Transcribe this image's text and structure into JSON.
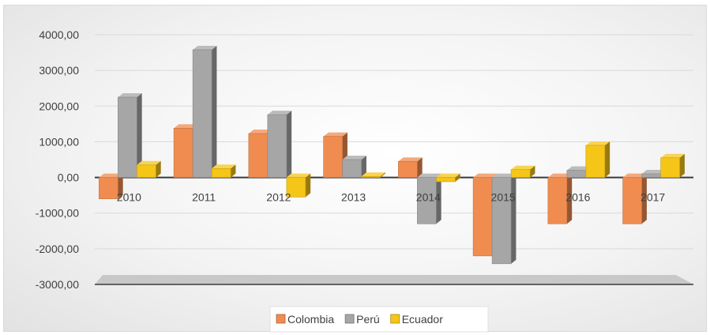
{
  "chart_data": {
    "type": "bar",
    "style": "3d-clustered-column",
    "title": "",
    "xlabel": "",
    "ylabel": "",
    "categories": [
      "2010",
      "2011",
      "2012",
      "2013",
      "2014",
      "2015",
      "2016",
      "2017"
    ],
    "series": [
      {
        "name": "Colombia",
        "color": "#f08c50",
        "values": [
          -600,
          1380,
          1230,
          1150,
          450,
          -2200,
          -1300,
          -1300
        ]
      },
      {
        "name": "Perú",
        "color": "#a6a6a6",
        "values": [
          2250,
          3580,
          1760,
          500,
          -1300,
          -2420,
          200,
          100
        ]
      },
      {
        "name": "Ecuador",
        "color": "#f5c518",
        "values": [
          350,
          250,
          -550,
          30,
          -120,
          220,
          900,
          550
        ]
      }
    ],
    "ylim": [
      -3000,
      4000
    ],
    "yticks": [
      "-3000,00",
      "-2000,00",
      "-1000,00",
      "0,00",
      "1000,00",
      "2000,00",
      "3000,00",
      "4000,00"
    ],
    "grid": true,
    "legend_position": "bottom"
  }
}
